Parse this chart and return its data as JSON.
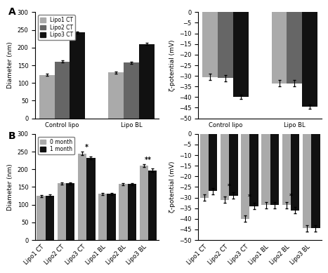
{
  "panel_A_diameter": {
    "groups": [
      "Control lipo",
      "Lipo BL"
    ],
    "series": [
      "Lipo1 CT",
      "Lipo2 CT",
      "Lipo3 CT"
    ],
    "values": [
      [
        123,
        160,
        243
      ],
      [
        130,
        157,
        210
      ]
    ],
    "errors": [
      [
        3,
        3,
        3
      ],
      [
        3,
        3,
        3
      ]
    ],
    "colors": [
      "#aaaaaa",
      "#666666",
      "#111111"
    ],
    "ylabel": "Diameter (nm)",
    "ylim": [
      0,
      300
    ],
    "yticks": [
      0,
      50,
      100,
      150,
      200,
      250,
      300
    ]
  },
  "panel_A_zeta": {
    "groups": [
      "Control lipo",
      "Lipo BL"
    ],
    "series": [
      "Lipo1 CT",
      "Lipo2 CT",
      "Lipo3 CT"
    ],
    "values": [
      [
        -30.5,
        -31,
        -40
      ],
      [
        -33.5,
        -33.5,
        -44.5
      ]
    ],
    "errors": [
      [
        1.5,
        1.5,
        1
      ],
      [
        1.5,
        1.5,
        1
      ]
    ],
    "colors": [
      "#aaaaaa",
      "#666666",
      "#111111"
    ],
    "ylabel": "ζ-potential (mV)",
    "ylim": [
      -50,
      0
    ],
    "yticks": [
      -50,
      -45,
      -40,
      -35,
      -30,
      -25,
      -20,
      -15,
      -10,
      -5,
      0
    ]
  },
  "panel_B_diameter": {
    "categories": [
      "Lipo1 CT",
      "Lipo2 CT",
      "Lipo3 CT",
      "Lipo1 BL",
      "Lipo2 BL",
      "Lipo3 BL"
    ],
    "series": [
      "0 month",
      "1 month"
    ],
    "values": [
      [
        125,
        160,
        245,
        130,
        158,
        210
      ],
      [
        126,
        160,
        232,
        130,
        158,
        197
      ]
    ],
    "errors": [
      [
        3,
        3,
        4,
        3,
        3,
        4
      ],
      [
        3,
        3,
        4,
        3,
        3,
        5
      ]
    ],
    "colors": [
      "#aaaaaa",
      "#111111"
    ],
    "ylabel": "Diameter (nm)",
    "ylim": [
      0,
      300
    ],
    "yticks": [
      0,
      50,
      100,
      150,
      200,
      250,
      300
    ],
    "stars": [
      "",
      "",
      "*",
      "",
      "",
      "**"
    ]
  },
  "panel_B_zeta": {
    "categories": [
      "Lipo1 CT",
      "Lipo2 CT",
      "Lipo3 CT",
      "Lipo1 BL",
      "Lipo2 BL",
      "Lipo3 BL"
    ],
    "series": [
      "0 month",
      "1 month"
    ],
    "values": [
      [
        -30,
        -31,
        -40,
        -33.5,
        -33.5,
        -44.5
      ],
      [
        -27,
        -29,
        -34,
        -33.5,
        -36,
        -44.5
      ]
    ],
    "errors": [
      [
        1.5,
        1.5,
        1.5,
        1.5,
        1.5,
        1.5
      ],
      [
        1.5,
        1.5,
        1.5,
        1.5,
        1.5,
        1.5
      ]
    ],
    "colors": [
      "#aaaaaa",
      "#111111"
    ],
    "ylabel": "ζ-potential (mV)",
    "ylim": [
      -50,
      0
    ],
    "yticks": [
      -50,
      -45,
      -40,
      -35,
      -30,
      -25,
      -20,
      -15,
      -10,
      -5,
      0
    ],
    "stars": [
      "",
      "*",
      "*",
      "",
      "*",
      ""
    ]
  },
  "bg_color": "#ffffff",
  "label_A": "A",
  "label_B": "B"
}
